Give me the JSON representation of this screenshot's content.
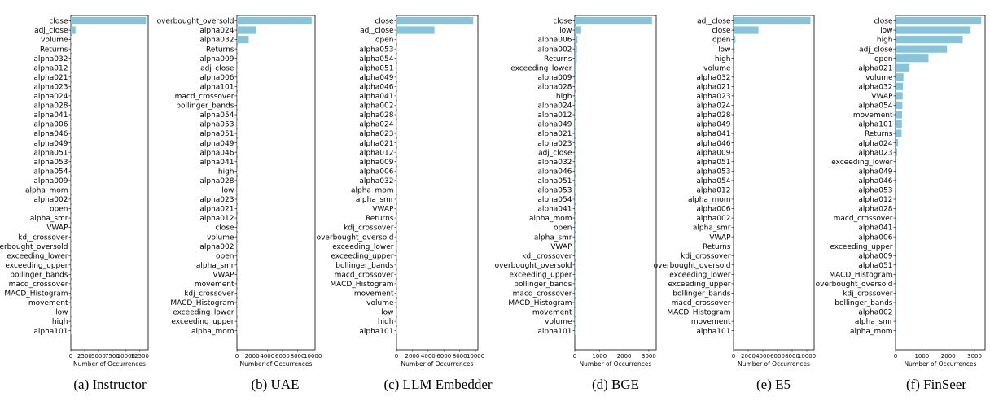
{
  "bar_color": "#87c4d9",
  "chart_data": [
    {
      "type": "bar",
      "orientation": "horizontal",
      "caption": "(a) Instructor",
      "xlabel": "Number of Occurrences",
      "xlim": [
        0,
        14000
      ],
      "xticks": [
        0,
        2500,
        5000,
        7500,
        10000,
        12500
      ],
      "categories": [
        "close",
        "adj_close",
        "volume",
        "Returns",
        "alpha032",
        "alpha012",
        "alpha021",
        "alpha023",
        "alpha024",
        "alpha028",
        "alpha041",
        "alpha006",
        "alpha046",
        "alpha049",
        "alpha051",
        "alpha053",
        "alpha054",
        "alpha009",
        "alpha_mom",
        "alpha002",
        "open",
        "alpha_smr",
        "VWAP",
        "kdj_crossover",
        "overbought_oversold",
        "exceeding_lower",
        "exceeding_upper",
        "bollinger_bands",
        "macd_crossover",
        "MACD_Histogram",
        "movement",
        "low",
        "high",
        "alpha101"
      ],
      "values": [
        13600,
        850,
        15,
        10,
        8,
        6,
        6,
        5,
        5,
        5,
        4,
        4,
        4,
        4,
        3,
        3,
        3,
        3,
        3,
        2,
        2,
        2,
        2,
        2,
        2,
        1,
        1,
        1,
        1,
        1,
        1,
        1,
        1,
        1
      ]
    },
    {
      "type": "bar",
      "orientation": "horizontal",
      "caption": "(b) UAE",
      "xlabel": "Number of Occurrences",
      "xlim": [
        0,
        10300
      ],
      "xticks": [
        0,
        2000,
        4000,
        6000,
        8000,
        10000
      ],
      "categories": [
        "overbought_oversold",
        "alpha024",
        "alpha032",
        "Returns",
        "alpha009",
        "adj_close",
        "alpha006",
        "alpha101",
        "macd_crossover",
        "bollinger_bands",
        "alpha054",
        "alpha053",
        "alpha051",
        "alpha049",
        "alpha046",
        "alpha041",
        "high",
        "alpha028",
        "low",
        "alpha023",
        "alpha021",
        "alpha012",
        "close",
        "volume",
        "alpha002",
        "open",
        "alpha_smr",
        "VWAP",
        "movement",
        "kdj_crossover",
        "MACD_Histogram",
        "exceeding_lower",
        "exceeding_upper",
        "alpha_mom"
      ],
      "values": [
        9850,
        2550,
        1550,
        60,
        40,
        30,
        25,
        20,
        15,
        12,
        10,
        10,
        8,
        8,
        7,
        6,
        6,
        5,
        5,
        4,
        4,
        4,
        3,
        3,
        3,
        2,
        2,
        2,
        2,
        2,
        1,
        1,
        1,
        1
      ]
    },
    {
      "type": "bar",
      "orientation": "horizontal",
      "caption": "(c) LLM Embedder",
      "xlabel": "Number of Occurrences",
      "xlim": [
        0,
        10300
      ],
      "xticks": [
        0,
        2000,
        4000,
        6000,
        8000,
        10000
      ],
      "categories": [
        "close",
        "adj_close",
        "open",
        "alpha053",
        "alpha054",
        "alpha051",
        "alpha049",
        "alpha046",
        "alpha041",
        "alpha002",
        "alpha028",
        "alpha024",
        "alpha023",
        "alpha021",
        "alpha012",
        "alpha009",
        "alpha006",
        "alpha032",
        "alpha_mom",
        "alpha_smr",
        "VWAP",
        "Returns",
        "kdj_crossover",
        "overbought_oversold",
        "exceeding_lower",
        "exceeding_upper",
        "bollinger_bands",
        "macd_crossover",
        "MACD_Histogram",
        "movement",
        "volume",
        "low",
        "high",
        "alpha101"
      ],
      "values": [
        9700,
        4800,
        15,
        10,
        8,
        8,
        6,
        6,
        5,
        5,
        5,
        4,
        4,
        4,
        4,
        3,
        3,
        3,
        3,
        2,
        2,
        2,
        2,
        2,
        2,
        1,
        1,
        1,
        1,
        1,
        1,
        1,
        1,
        1
      ]
    },
    {
      "type": "bar",
      "orientation": "horizontal",
      "caption": "(d) BGE",
      "xlabel": "Number of Occurrences",
      "xlim": [
        0,
        3300
      ],
      "xticks": [
        0,
        1000,
        2000,
        3000
      ],
      "categories": [
        "close",
        "low",
        "alpha006",
        "alpha002",
        "Returns",
        "exceeding_lower",
        "alpha009",
        "alpha028",
        "high",
        "alpha024",
        "alpha012",
        "alpha049",
        "alpha021",
        "alpha023",
        "adj_close",
        "alpha032",
        "alpha046",
        "alpha051",
        "alpha053",
        "alpha054",
        "alpha041",
        "alpha_mom",
        "open",
        "alpha_smr",
        "VWAP",
        "kdj_crossover",
        "overbought_oversold",
        "exceeding_upper",
        "bollinger_bands",
        "macd_crossover",
        "MACD_Histogram",
        "movement",
        "volume",
        "alpha101"
      ],
      "values": [
        3130,
        260,
        110,
        90,
        80,
        60,
        30,
        20,
        15,
        12,
        10,
        10,
        8,
        8,
        7,
        6,
        6,
        5,
        5,
        5,
        4,
        4,
        3,
        3,
        3,
        2,
        2,
        2,
        2,
        1,
        1,
        1,
        1,
        1
      ]
    },
    {
      "type": "bar",
      "orientation": "horizontal",
      "caption": "(e) E5",
      "xlabel": "Number of Occurrences",
      "xlim": [
        0,
        11000
      ],
      "xticks": [
        0,
        2000,
        4000,
        6000,
        8000,
        10000
      ],
      "categories": [
        "adj_close",
        "close",
        "open",
        "low",
        "high",
        "volume",
        "alpha032",
        "alpha021",
        "alpha023",
        "alpha024",
        "alpha028",
        "alpha049",
        "alpha041",
        "alpha046",
        "alpha009",
        "alpha051",
        "alpha053",
        "alpha054",
        "alpha012",
        "alpha_mom",
        "alpha006",
        "alpha002",
        "alpha_smr",
        "VWAP",
        "Returns",
        "kdj_crossover",
        "overbought_oversold",
        "exceeding_lower",
        "exceeding_upper",
        "bollinger_bands",
        "macd_crossover",
        "MACD_Histogram",
        "movement",
        "alpha101"
      ],
      "values": [
        10500,
        3400,
        250,
        150,
        30,
        20,
        15,
        12,
        10,
        10,
        8,
        8,
        7,
        6,
        6,
        5,
        5,
        5,
        4,
        4,
        3,
        3,
        3,
        2,
        2,
        2,
        2,
        1,
        1,
        1,
        1,
        1,
        1,
        1
      ]
    },
    {
      "type": "bar",
      "orientation": "horizontal",
      "caption": "(f) FinSeer",
      "xlabel": "Number of Occurrences",
      "xlim": [
        0,
        3400
      ],
      "xticks": [
        0,
        1000,
        2000,
        3000
      ],
      "categories": [
        "close",
        "low",
        "high",
        "adj_close",
        "open",
        "alpha021",
        "volume",
        "alpha032",
        "VWAP",
        "alpha054",
        "movement",
        "alpha101",
        "Returns",
        "alpha024",
        "alpha023",
        "exceeding_lower",
        "alpha049",
        "alpha046",
        "alpha053",
        "alpha012",
        "alpha028",
        "macd_crossover",
        "alpha041",
        "alpha006",
        "exceeding_upper",
        "alpha009",
        "alpha051",
        "MACD_Histogram",
        "overbought_oversold",
        "kdj_crossover",
        "bollinger_bands",
        "alpha002",
        "alpha_smr",
        "alpha_mom"
      ],
      "values": [
        3250,
        2850,
        2550,
        1950,
        1250,
        530,
        300,
        280,
        270,
        260,
        250,
        240,
        230,
        90,
        60,
        15,
        10,
        10,
        8,
        8,
        7,
        6,
        6,
        5,
        5,
        4,
        4,
        3,
        3,
        2,
        2,
        2,
        1,
        1
      ]
    }
  ]
}
